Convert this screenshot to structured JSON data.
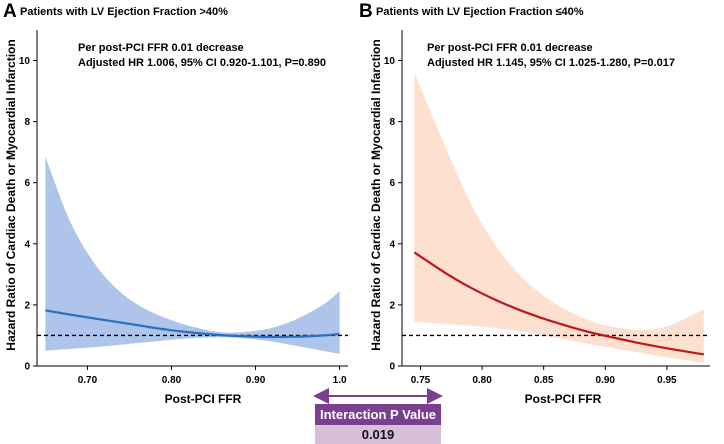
{
  "chart_data": [
    {
      "type": "line",
      "panel_letter": "A",
      "title": "Patients with LV Ejection Fraction >40%",
      "annotation_line1": "Per post-PCI FFR 0.01 decrease",
      "annotation_line2": "Adjusted HR 1.006, 95% CI 0.920-1.101, P=0.890",
      "xlabel": "Post-PCI FFR",
      "ylabel": "Hazard Ratio of Cardiac Death or Myocardial Infarction",
      "xlim": [
        0.64,
        1.01
      ],
      "ylim": [
        0,
        11
      ],
      "xticks": [
        0.7,
        0.8,
        0.9,
        1.0
      ],
      "xtick_labels": [
        "0.70",
        "0.80",
        "0.90",
        "1.0"
      ],
      "yticks": [
        0,
        2,
        4,
        6,
        8,
        10
      ],
      "ytick_labels": [
        "0",
        "2",
        "4",
        "6",
        "8",
        "10"
      ],
      "reference_line": 1,
      "line_color": "#2a6fc0",
      "band_color": "#aec4ea",
      "x": [
        0.65,
        0.68,
        0.71,
        0.74,
        0.77,
        0.8,
        0.83,
        0.86,
        0.89,
        0.92,
        0.95,
        0.98,
        1.0
      ],
      "hr": [
        1.82,
        1.68,
        1.55,
        1.42,
        1.29,
        1.17,
        1.08,
        1.01,
        0.97,
        0.95,
        0.96,
        1.0,
        1.05
      ],
      "lower": [
        0.5,
        0.56,
        0.62,
        0.7,
        0.78,
        0.86,
        0.92,
        0.94,
        0.9,
        0.8,
        0.65,
        0.5,
        0.4
      ],
      "upper": [
        6.85,
        4.7,
        3.3,
        2.4,
        1.85,
        1.5,
        1.25,
        1.1,
        1.12,
        1.25,
        1.55,
        2.0,
        2.45
      ]
    },
    {
      "type": "line",
      "panel_letter": "B",
      "title": "Patients with LV Ejection Fraction ≤40%",
      "annotation_line1": "Per post-PCI FFR 0.01 decrease",
      "annotation_line2": "Adjusted HR 1.145, 95% CI 1.025-1.280, P=0.017",
      "xlabel": "Post-PCI FFR",
      "ylabel": "Hazard Ratio of Cardiac Death or Myocardial Infarction",
      "xlim": [
        0.735,
        0.985
      ],
      "ylim": [
        0,
        11
      ],
      "xticks": [
        0.75,
        0.8,
        0.85,
        0.9,
        0.95
      ],
      "xtick_labels": [
        "0.75",
        "0.80",
        "0.85",
        "0.90",
        "0.95"
      ],
      "yticks": [
        0,
        2,
        4,
        6,
        8,
        10
      ],
      "ytick_labels": [
        "0",
        "2",
        "4",
        "6",
        "8",
        "10"
      ],
      "reference_line": 1,
      "line_color": "#c0161e",
      "band_color": "#fde0cf",
      "x": [
        0.745,
        0.77,
        0.79,
        0.81,
        0.83,
        0.85,
        0.87,
        0.89,
        0.91,
        0.93,
        0.95,
        0.98
      ],
      "hr": [
        3.72,
        3.05,
        2.58,
        2.18,
        1.84,
        1.55,
        1.3,
        1.08,
        0.9,
        0.73,
        0.58,
        0.38
      ],
      "lower": [
        1.45,
        1.38,
        1.32,
        1.25,
        1.15,
        1.0,
        0.85,
        0.7,
        0.56,
        0.42,
        0.28,
        0.1
      ],
      "upper": [
        9.6,
        7.2,
        5.4,
        4.0,
        3.0,
        2.3,
        1.8,
        1.45,
        1.25,
        1.18,
        1.3,
        1.85
      ]
    }
  ],
  "interaction": {
    "label": "Interaction P Value",
    "value": "0.019",
    "header_color": "#7a3f8f",
    "value_bg_color": "#d8bfd8"
  }
}
